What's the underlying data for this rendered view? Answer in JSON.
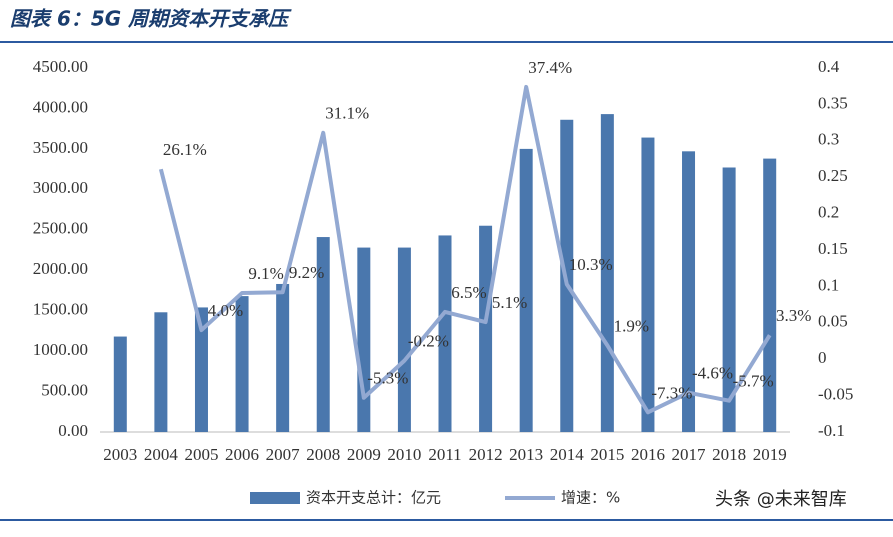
{
  "chart_data": {
    "type": "bar-line",
    "title": "图表 6：5G 周期资本开支承压",
    "categories": [
      "2003",
      "2004",
      "2005",
      "2006",
      "2007",
      "2008",
      "2009",
      "2010",
      "2011",
      "2012",
      "2013",
      "2014",
      "2015",
      "2016",
      "2017",
      "2018",
      "2019"
    ],
    "series": [
      {
        "name": "资本开支总计：亿元",
        "type": "bar",
        "color": "#4a77ad",
        "values": [
          1180,
          1480,
          1540,
          1680,
          1830,
          2410,
          2280,
          2280,
          2430,
          2550,
          3500,
          3860,
          3930,
          3640,
          3470,
          3270,
          3380
        ]
      },
      {
        "name": "增速：%",
        "type": "line",
        "axis": "y2",
        "color": "#93a9d2",
        "values": [
          null,
          0.261,
          0.04,
          0.091,
          0.092,
          0.311,
          -0.053,
          -0.002,
          0.065,
          0.051,
          0.374,
          0.103,
          0.019,
          -0.073,
          -0.046,
          -0.057,
          0.033
        ],
        "value_labels": [
          null,
          "26.1%",
          "4.0%",
          "9.1%",
          "9.2%",
          "31.1%",
          "-5.3%",
          "-0.2%",
          "6.5%",
          "5.1%",
          "37.4%",
          "10.3%",
          "1.9%",
          "-7.3%",
          "-4.6%",
          "-5.7%",
          "3.3%"
        ]
      }
    ],
    "ylim": [
      0,
      4500
    ],
    "yticks": [
      {
        "value": 0,
        "label": "0.00"
      },
      {
        "value": 500,
        "label": "500.00"
      },
      {
        "value": 1000,
        "label": "1000.00"
      },
      {
        "value": 1500,
        "label": "1500.00"
      },
      {
        "value": 2000,
        "label": "2000.00"
      },
      {
        "value": 2500,
        "label": "2500.00"
      },
      {
        "value": 3000,
        "label": "3000.00"
      },
      {
        "value": 3500,
        "label": "3500.00"
      },
      {
        "value": 4000,
        "label": "4000.00"
      },
      {
        "value": 4500,
        "label": "4500.00"
      }
    ],
    "y2lim": [
      -0.1,
      0.4
    ],
    "y2ticks": [
      -0.1,
      -0.05,
      0,
      0.05,
      0.1,
      0.15,
      0.2,
      0.25,
      0.3,
      0.35,
      0.4
    ],
    "watermark": "头条 @未来智库"
  }
}
